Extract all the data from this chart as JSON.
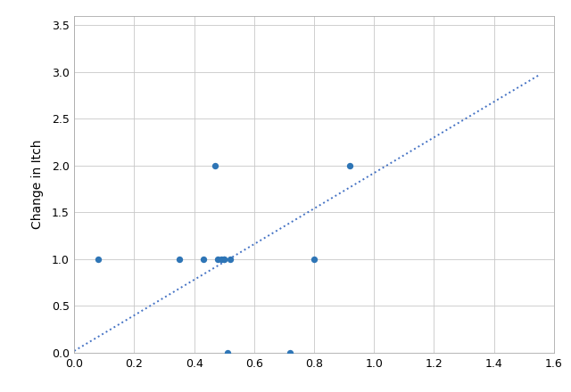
{
  "x_data": [
    0.08,
    0.35,
    0.43,
    0.47,
    0.48,
    0.49,
    0.5,
    0.5,
    0.51,
    0.52,
    0.72,
    0.8,
    0.92
  ],
  "y_data": [
    1.0,
    1.0,
    1.0,
    2.0,
    1.0,
    1.0,
    1.0,
    1.0,
    0.0,
    1.0,
    0.0,
    1.0,
    2.0
  ],
  "trendline_x0": 0.0,
  "trendline_x1": 1.55,
  "trendline_slope": 1.9,
  "trendline_intercept": 0.02,
  "ylabel": "Change in Itch",
  "xlim": [
    0,
    1.6
  ],
  "ylim": [
    0,
    3.6
  ],
  "xticks": [
    0,
    0.2,
    0.4,
    0.6,
    0.8,
    1.0,
    1.2,
    1.4,
    1.6
  ],
  "yticks": [
    0,
    0.5,
    1.0,
    1.5,
    2.0,
    2.5,
    3.0,
    3.5
  ],
  "dot_color": "#2E75B6",
  "line_color": "#4472C4",
  "bg_color": "#FFFFFF",
  "plot_bg_color": "#FFFFFF",
  "grid_color": "#C8C8C8",
  "label_fontsize": 10,
  "tick_fontsize": 9,
  "dot_size": 28
}
